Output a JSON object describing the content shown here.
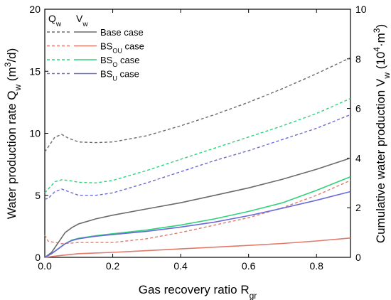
{
  "chart_data": {
    "type": "line",
    "xlabel": {
      "text": "Gas recovery ratio R",
      "sub": "gr"
    },
    "ylabel_left": {
      "parts": [
        [
          "Water production rate Q",
          ""
        ],
        [
          "w",
          "sub"
        ],
        [
          " (m",
          ""
        ],
        [
          "3",
          "sup"
        ],
        [
          "/d)",
          ""
        ]
      ]
    },
    "ylabel_right": {
      "parts": [
        [
          "Cumulative water production V",
          ""
        ],
        [
          "w",
          "sub"
        ],
        [
          " (10",
          ""
        ],
        [
          "4",
          "sup"
        ],
        [
          "·m",
          ""
        ],
        [
          "3",
          "sup"
        ],
        [
          ")",
          ""
        ]
      ]
    },
    "xlim": [
      0,
      0.9
    ],
    "ylim_left": [
      0,
      20
    ],
    "ylim_right": [
      0,
      10
    ],
    "x_ticks": [
      0.0,
      0.2,
      0.4,
      0.6,
      0.8
    ],
    "x_tick_labels": [
      "0.0",
      "0.2",
      "0.4",
      "0.6",
      "0.8"
    ],
    "y_left_ticks": [
      0,
      5,
      10,
      15,
      20
    ],
    "y_right_ticks": [
      0,
      2,
      4,
      6,
      8,
      10
    ],
    "legend_headers": [
      {
        "text": "Q",
        "sub": "w"
      },
      {
        "text": "V",
        "sub": "w"
      }
    ],
    "legend_entries": [
      {
        "text": "Base case",
        "sub": ""
      },
      {
        "text": "BS",
        "sub": "OU",
        "after": " case"
      },
      {
        "text": "BS",
        "sub": "O",
        "after": "   case"
      },
      {
        "text": "BS",
        "sub": "U",
        "after": "   case"
      }
    ],
    "colors": [
      "#6b6b6b",
      "#e07a6a",
      "#2fd27a",
      "#6a6ad8"
    ],
    "series_q": [
      {
        "axis": "left",
        "style": "dashed",
        "x": [
          0,
          0.01,
          0.03,
          0.05,
          0.07,
          0.1,
          0.15,
          0.2,
          0.3,
          0.4,
          0.5,
          0.6,
          0.7,
          0.8,
          0.9
        ],
        "y": [
          8.5,
          8.9,
          9.7,
          9.9,
          9.6,
          9.3,
          9.25,
          9.3,
          9.8,
          10.6,
          11.5,
          12.5,
          13.6,
          14.8,
          16.1
        ]
      },
      {
        "axis": "left",
        "style": "dashed",
        "x": [
          0,
          0.01,
          0.03,
          0.05,
          0.08,
          0.1,
          0.15,
          0.2,
          0.3,
          0.4,
          0.5,
          0.6,
          0.7,
          0.8,
          0.9
        ],
        "y": [
          1.8,
          1.3,
          1.2,
          1.1,
          1.15,
          1.2,
          1.2,
          1.2,
          1.5,
          2.0,
          2.6,
          3.2,
          4.0,
          5.0,
          6.2
        ]
      },
      {
        "axis": "left",
        "style": "dashed",
        "x": [
          0,
          0.01,
          0.03,
          0.05,
          0.07,
          0.1,
          0.15,
          0.2,
          0.3,
          0.4,
          0.5,
          0.6,
          0.7,
          0.8,
          0.9
        ],
        "y": [
          5.2,
          5.5,
          6.1,
          6.25,
          6.2,
          6.05,
          6.0,
          6.2,
          7.0,
          7.9,
          8.8,
          9.7,
          10.6,
          11.6,
          12.8
        ]
      },
      {
        "axis": "left",
        "style": "dashed",
        "x": [
          0,
          0.01,
          0.03,
          0.05,
          0.07,
          0.1,
          0.15,
          0.2,
          0.3,
          0.4,
          0.5,
          0.6,
          0.7,
          0.8,
          0.9
        ],
        "y": [
          4.7,
          4.75,
          5.3,
          5.5,
          5.3,
          5.0,
          5.0,
          5.2,
          6.0,
          6.9,
          7.8,
          8.6,
          9.5,
          10.4,
          11.5
        ]
      }
    ],
    "series_v": [
      {
        "axis": "right",
        "style": "solid",
        "x": [
          0,
          0.02,
          0.04,
          0.06,
          0.08,
          0.1,
          0.15,
          0.2,
          0.3,
          0.4,
          0.5,
          0.6,
          0.7,
          0.8,
          0.9
        ],
        "y": [
          0,
          0.2,
          0.6,
          1.0,
          1.2,
          1.35,
          1.55,
          1.7,
          1.95,
          2.2,
          2.5,
          2.8,
          3.15,
          3.55,
          4.0
        ]
      },
      {
        "axis": "right",
        "style": "solid",
        "x": [
          0,
          0.05,
          0.1,
          0.2,
          0.3,
          0.4,
          0.5,
          0.6,
          0.7,
          0.8,
          0.9
        ],
        "y": [
          0,
          0.08,
          0.15,
          0.2,
          0.27,
          0.34,
          0.41,
          0.48,
          0.56,
          0.66,
          0.78
        ]
      },
      {
        "axis": "right",
        "style": "solid",
        "x": [
          0,
          0.02,
          0.04,
          0.06,
          0.08,
          0.1,
          0.15,
          0.2,
          0.3,
          0.4,
          0.5,
          0.6,
          0.7,
          0.8,
          0.9
        ],
        "y": [
          0,
          0.15,
          0.35,
          0.55,
          0.7,
          0.77,
          0.87,
          0.95,
          1.1,
          1.3,
          1.55,
          1.85,
          2.2,
          2.7,
          3.25
        ]
      },
      {
        "axis": "right",
        "style": "solid",
        "x": [
          0,
          0.02,
          0.04,
          0.06,
          0.08,
          0.1,
          0.15,
          0.2,
          0.3,
          0.4,
          0.5,
          0.6,
          0.7,
          0.8,
          0.9
        ],
        "y": [
          0,
          0.15,
          0.35,
          0.55,
          0.68,
          0.75,
          0.85,
          0.92,
          1.05,
          1.22,
          1.42,
          1.68,
          1.98,
          2.3,
          2.65
        ]
      }
    ]
  }
}
